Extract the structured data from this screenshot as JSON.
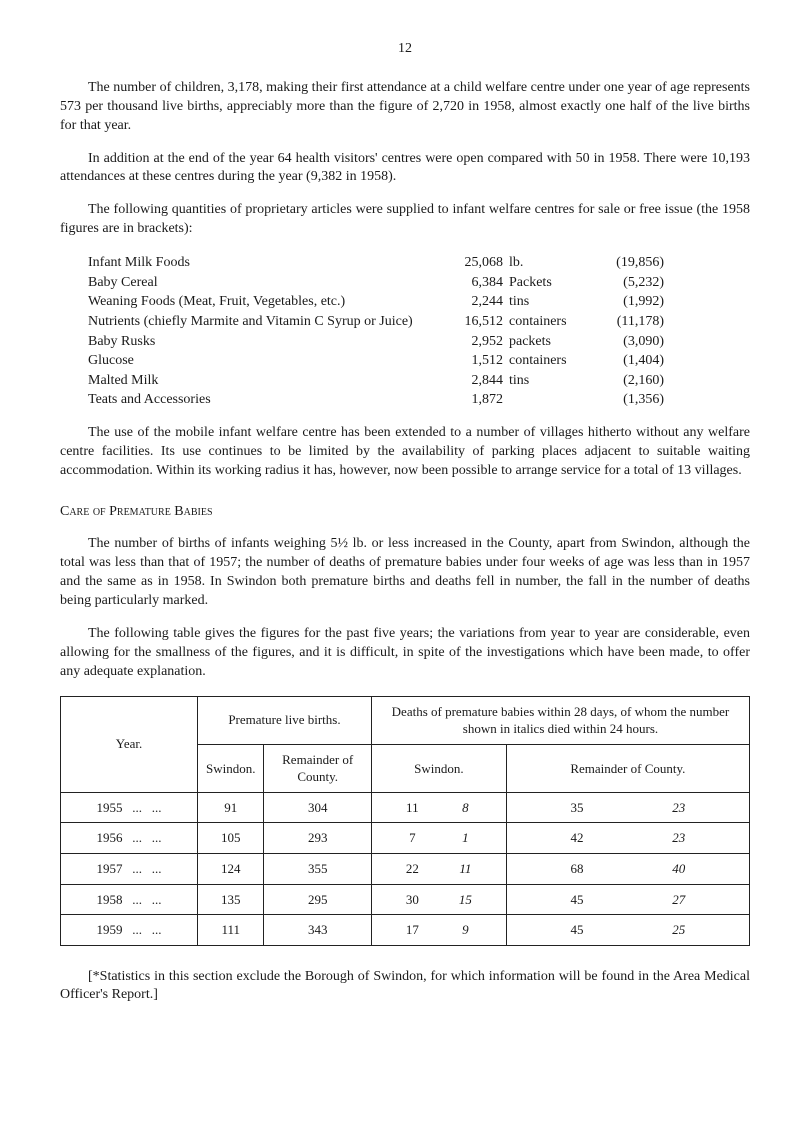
{
  "page_number": "12",
  "para1": "The number of children, 3,178, making their first attendance at a child welfare centre under one year of age represents 573 per thousand live births, appreciably more than the figure of 2,720 in 1958, almost exactly one half of the live births for that year.",
  "para2": "In addition at the end of the year 64 health visitors' centres were open compared with 50 in 1958. There were 10,193 attendances at these centres during the year (9,382 in 1958).",
  "para3": "The following quantities of proprietary articles were supplied to infant welfare centres for sale or free issue (the 1958 figures are in brackets):",
  "supplies": [
    {
      "item": "Infant Milk Foods",
      "qty": "25,068",
      "unit": "lb.",
      "prev": "(19,856)"
    },
    {
      "item": "Baby Cereal",
      "qty": "6,384",
      "unit": "Packets",
      "prev": "(5,232)"
    },
    {
      "item": "Weaning Foods (Meat, Fruit, Vegetables, etc.)",
      "qty": "2,244",
      "unit": "tins",
      "prev": "(1,992)"
    },
    {
      "item": "Nutrients (chiefly Marmite and Vitamin C Syrup or Juice)",
      "qty": "16,512",
      "unit": "containers",
      "prev": "(11,178)"
    },
    {
      "item": "Baby Rusks",
      "qty": "2,952",
      "unit": "packets",
      "prev": "(3,090)"
    },
    {
      "item": "Glucose",
      "qty": "1,512",
      "unit": "containers",
      "prev": "(1,404)"
    },
    {
      "item": "Malted Milk",
      "qty": "2,844",
      "unit": "tins",
      "prev": "(2,160)"
    },
    {
      "item": "Teats and Accessories",
      "qty": "1,872",
      "unit": "",
      "prev": "(1,356)"
    }
  ],
  "para4": "The use of the mobile infant welfare centre has been extended to a number of villages hitherto without any welfare centre facilities. Its use continues to be limited by the availability of parking places adjacent to suitable waiting accommodation. Within its working radius it has, however, now been possible to arrange service for a total of 13 villages.",
  "section_heading": "Care of Premature Babies",
  "para5": "The number of births of infants weighing 5½ lb. or less increased in the County, apart from Swindon, although the total was less than that of 1957; the number of deaths of premature babies under four weeks of age was less than in 1957 and the same as in 1958. In Swindon both premature births and deaths fell in number, the fall in the number of deaths being particularly marked.",
  "para6": "The following table gives the figures for the past five years; the variations from year to year are considerable, even allowing for the smallness of the figures, and it is difficult, in spite of the investigations which have been made, to offer any adequate explanation.",
  "table": {
    "header_year": "Year.",
    "header_births": "Premature live births.",
    "header_deaths": "Deaths of premature babies within 28 days, of whom the number shown in italics died within 24 hours.",
    "sub_swindon": "Swindon.",
    "sub_remainder": "Remainder of County.",
    "rows": [
      {
        "year": "1955",
        "b_sw": "91",
        "b_rc": "304",
        "d_sw_a": "11",
        "d_sw_b": "8",
        "d_rc_a": "35",
        "d_rc_b": "23"
      },
      {
        "year": "1956",
        "b_sw": "105",
        "b_rc": "293",
        "d_sw_a": "7",
        "d_sw_b": "1",
        "d_rc_a": "42",
        "d_rc_b": "23"
      },
      {
        "year": "1957",
        "b_sw": "124",
        "b_rc": "355",
        "d_sw_a": "22",
        "d_sw_b": "11",
        "d_rc_a": "68",
        "d_rc_b": "40"
      },
      {
        "year": "1958",
        "b_sw": "135",
        "b_rc": "295",
        "d_sw_a": "30",
        "d_sw_b": "15",
        "d_rc_a": "45",
        "d_rc_b": "27"
      },
      {
        "year": "1959",
        "b_sw": "111",
        "b_rc": "343",
        "d_sw_a": "17",
        "d_sw_b": "9",
        "d_rc_a": "45",
        "d_rc_b": "25"
      }
    ]
  },
  "footnote": "[*Statistics in this section exclude the Borough of Swindon, for which information will be found in the Area Medical Officer's Report.]"
}
